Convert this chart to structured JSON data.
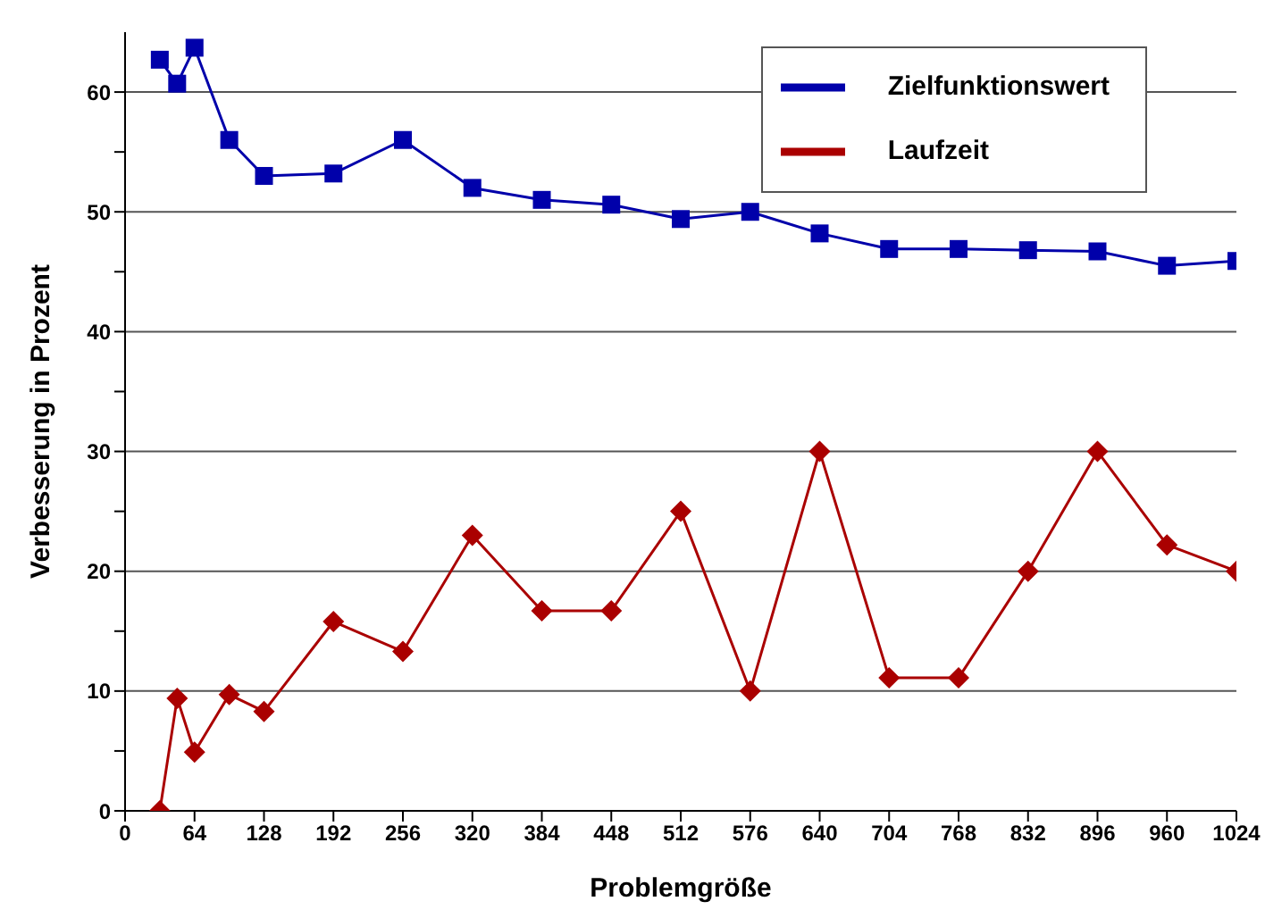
{
  "chart_data": {
    "type": "line",
    "xlabel": "Problemgröße",
    "ylabel": "Verbesserung in Prozent",
    "x": [
      32,
      48,
      64,
      96,
      128,
      192,
      256,
      320,
      384,
      448,
      512,
      576,
      640,
      704,
      768,
      832,
      896,
      960,
      1024
    ],
    "series": [
      {
        "name": "Zielfunktionswert",
        "color": "#0000aa",
        "marker": "square",
        "values": [
          62.7,
          60.7,
          63.7,
          56,
          53,
          53.2,
          56,
          52,
          51,
          50.6,
          49.4,
          50,
          48.2,
          46.9,
          46.9,
          46.8,
          46.7,
          45.5,
          45.9
        ]
      },
      {
        "name": "Laufzeit",
        "color": "#aa0000",
        "marker": "diamond",
        "values": [
          0,
          9.4,
          4.9,
          9.7,
          8.3,
          15.8,
          13.3,
          23,
          16.7,
          16.7,
          25,
          10,
          30,
          11.1,
          11.1,
          20,
          30,
          22.2,
          20
        ]
      }
    ],
    "xlim": [
      0,
      1024
    ],
    "xticks": [
      0,
      64,
      128,
      192,
      256,
      320,
      384,
      448,
      512,
      576,
      640,
      704,
      768,
      832,
      896,
      960,
      1024
    ],
    "ylim": [
      0,
      65
    ],
    "yticks": [
      0,
      {
        "value": 5,
        "label": null
      },
      10,
      {
        "value": 15,
        "label": null
      },
      20,
      {
        "value": 25,
        "label": null
      },
      30,
      {
        "value": 35,
        "label": null
      },
      40,
      {
        "value": 45,
        "label": null
      },
      50,
      {
        "value": 55,
        "label": null
      },
      60
    ],
    "grid": "y",
    "legend": "top right",
    "line_style": "solid"
  }
}
